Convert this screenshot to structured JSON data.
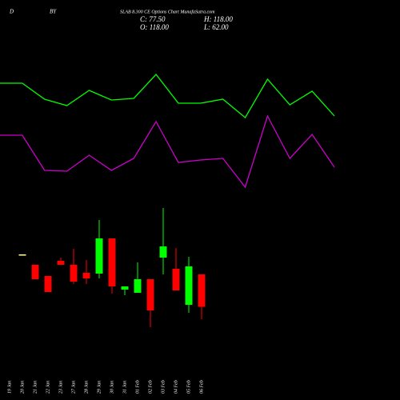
{
  "chart_data": {
    "type": "candlestick",
    "header": {
      "left": "D",
      "mid": "BY",
      "title": "SLAB 8.300 CE Options  Chart MunafaSutra.com",
      "close": "C: 77.50",
      "high": "H: 118.00",
      "open": "O: 118.00",
      "low": "L: 62.00"
    },
    "categories": [
      "19 Jan",
      "20 Jan",
      "21 Jan",
      "22 Jan",
      "23 Jan",
      "27 Jan",
      "28 Jan",
      "29 Jan",
      "30 Jan",
      "31 Jan",
      "01 Feb",
      "02 Feb",
      "03 Feb",
      "04 Feb",
      "05 Feb",
      "06 Feb"
    ],
    "open": [
      null,
      143,
      130,
      116,
      135,
      130,
      120,
      119,
      163,
      99,
      95,
      112,
      139,
      125,
      80,
      118
    ],
    "high": [
      null,
      143,
      130,
      116,
      139,
      150,
      136,
      186,
      163,
      103,
      133,
      112,
      201,
      151,
      140,
      118
    ],
    "low": [
      null,
      143,
      112,
      96,
      130,
      106,
      106,
      113,
      94,
      92,
      95,
      52,
      118,
      98,
      70,
      62
    ],
    "close": [
      null,
      143,
      112,
      96,
      130,
      109,
      113,
      163,
      103,
      103,
      112,
      73,
      153,
      98,
      128,
      77.5
    ],
    "up_color": "#00ff00",
    "down_color": "#ff0000",
    "flat_color": "#ffff99",
    "lines": [
      {
        "color": "#00ff00",
        "values": [
          357,
          357,
          337,
          329,
          348,
          336,
          338,
          368,
          332,
          332,
          337,
          314,
          362,
          330,
          347,
          316
        ]
      },
      {
        "color": "#cc00cc",
        "values": [
          292,
          292,
          248,
          247,
          267,
          248,
          263,
          309,
          258,
          261,
          263,
          227,
          316,
          263,
          293,
          252
        ]
      }
    ],
    "ylim": [
      0,
      461
    ]
  }
}
